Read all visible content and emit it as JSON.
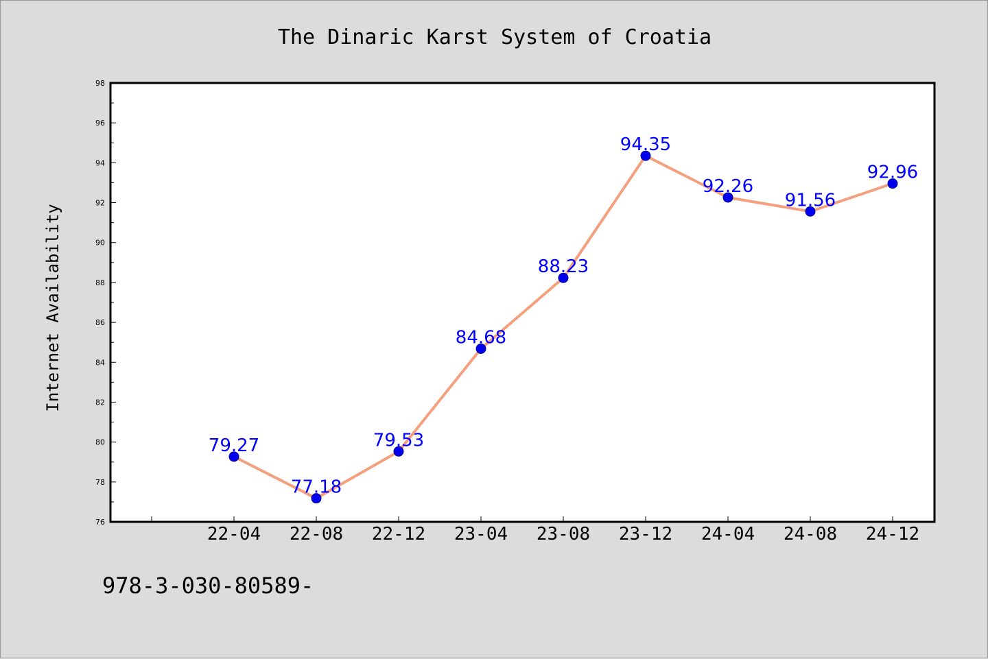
{
  "chart_data": {
    "type": "line",
    "title": "The Dinaric Karst System of Croatia",
    "xlabel": "",
    "ylabel": "Internet Availability",
    "categories": [
      "22-04",
      "22-08",
      "22-12",
      "23-04",
      "23-08",
      "23-12",
      "24-04",
      "24-08",
      "24-12"
    ],
    "series": [
      {
        "values": [
          79.27,
          77.18,
          79.53,
          84.68,
          88.23,
          94.35,
          92.26,
          91.56,
          92.96
        ],
        "labels": [
          "79.27",
          "77.18",
          "79.53",
          "84.68",
          "88.23",
          "94.35",
          "92.26",
          "91.56",
          "92.96"
        ],
        "line_color": "#f4a07e",
        "marker_color": "#0000ee",
        "label_color": "#0000ff"
      }
    ],
    "ylim": [
      76,
      98
    ],
    "yticks": [
      "76",
      "78",
      "80",
      "82",
      "84",
      "86",
      "88",
      "90",
      "92",
      "94",
      "96",
      "98"
    ],
    "grid": false,
    "legend": "none"
  },
  "footer": {
    "text": "978-3-030-80589-"
  },
  "colors": {
    "background": "#dcdcdc",
    "plot_area": "#ffffff",
    "axis": "#000000"
  }
}
